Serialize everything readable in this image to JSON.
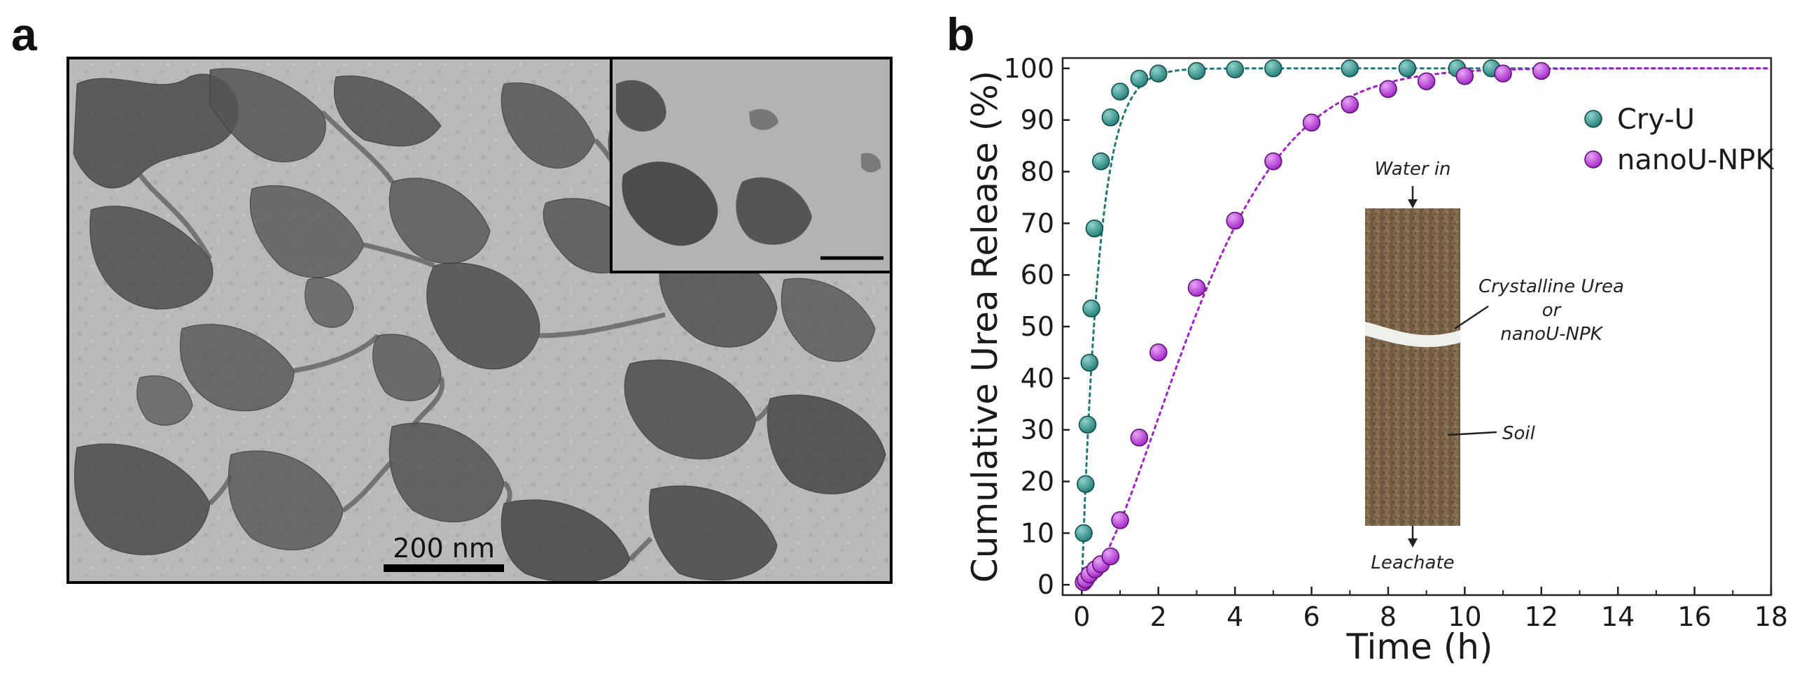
{
  "panel_a": {
    "label": "a",
    "scale_bar_label": "200 nm",
    "image_alt": "TEM micrograph of networked nanoparticles"
  },
  "panel_b": {
    "label": "b",
    "inset": {
      "top_label": "Water in",
      "bottom_label": "Leachate",
      "layer_label_1": "Crystalline Urea",
      "layer_label_or": "or",
      "layer_label_2": "nanoU-NPK",
      "soil_label": "Soil",
      "layer_label_1_color": "#2a8a83",
      "layer_label_2_color": "#b02ad6"
    }
  },
  "chart_data": {
    "type": "scatter",
    "title": "",
    "xlabel": "Time (h)",
    "ylabel": "Cumulative Urea Release (%)",
    "xlim": [
      -0.5,
      18
    ],
    "ylim": [
      -2,
      102
    ],
    "xticks": [
      0,
      2,
      4,
      6,
      8,
      10,
      12,
      14,
      16,
      18
    ],
    "xtick_labels": [
      "0",
      "2",
      "4",
      "6",
      "8",
      "10",
      "12",
      "14",
      "16",
      "18"
    ],
    "yticks": [
      0,
      10,
      20,
      30,
      40,
      50,
      60,
      70,
      80,
      90,
      100
    ],
    "ytick_labels": [
      "0",
      "10",
      "20",
      "30",
      "40",
      "50",
      "60",
      "70",
      "80",
      "90",
      "100"
    ],
    "legend_position": "top-right",
    "series": [
      {
        "name": "Cry-U",
        "color": "#1f7a73",
        "highlight": "#8fd3cc",
        "x": [
          0.05,
          0.1,
          0.15,
          0.2,
          0.25,
          0.33,
          0.5,
          0.75,
          1.0,
          1.5,
          2.0,
          3.0,
          4.0,
          5.0,
          7.0,
          8.5,
          9.8,
          10.7
        ],
        "y": [
          10,
          19.5,
          31,
          43,
          53.5,
          69,
          82,
          90.5,
          95.5,
          98,
          99,
          99.5,
          99.8,
          100,
          100,
          100,
          100,
          100
        ]
      },
      {
        "name": "nanoU-NPK",
        "color": "#a21fc9",
        "highlight": "#e7a6f5",
        "x": [
          0.05,
          0.1,
          0.2,
          0.35,
          0.5,
          0.75,
          1.0,
          1.5,
          2.0,
          3.0,
          4.0,
          5.0,
          6.0,
          7.0,
          8.0,
          9.0,
          10.0,
          11.0,
          12.0
        ],
        "y": [
          0.5,
          1.0,
          2.0,
          3.0,
          4.0,
          5.5,
          12.5,
          28.5,
          45,
          57.5,
          70.5,
          82,
          89.5,
          93,
          96,
          97.5,
          98.5,
          99,
          99.5
        ]
      }
    ]
  }
}
